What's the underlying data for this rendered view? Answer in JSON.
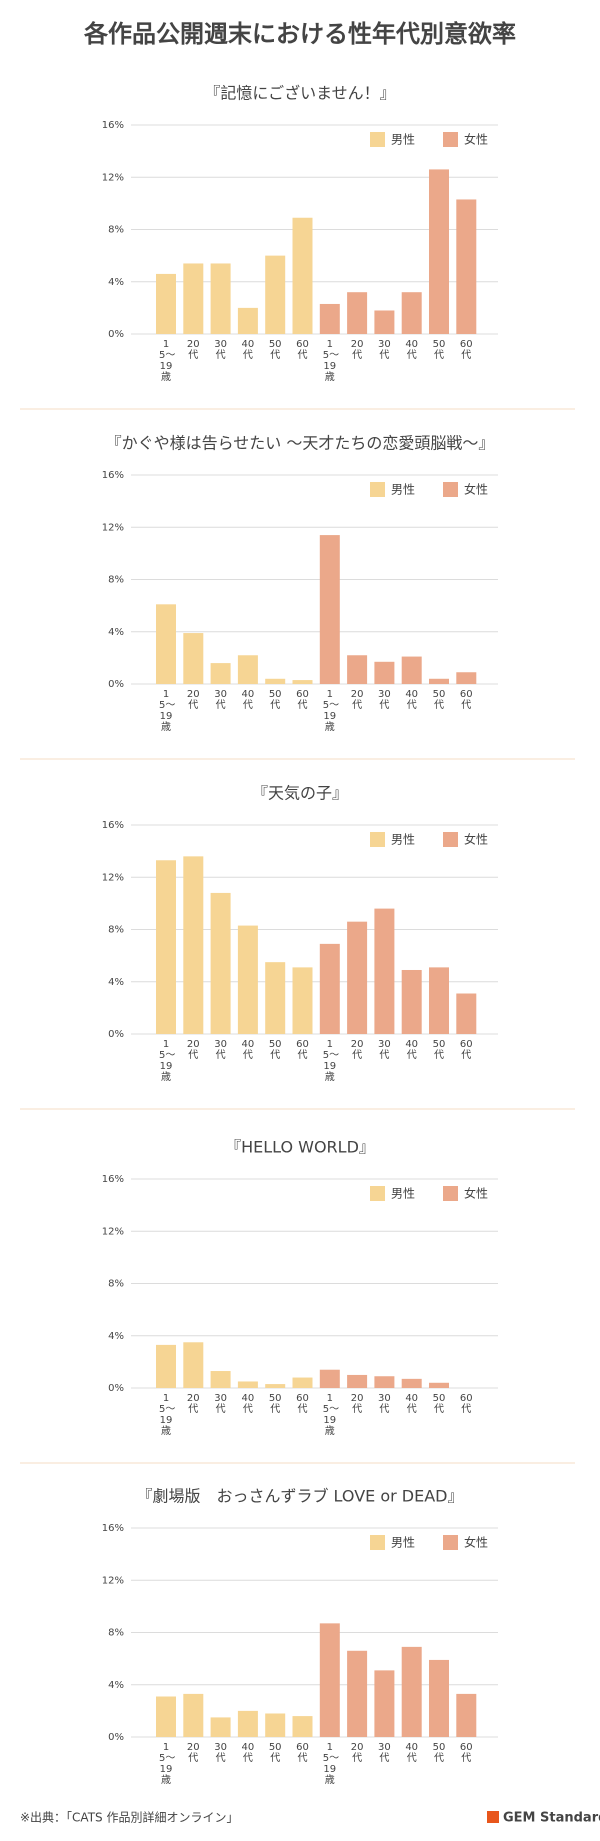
{
  "title": "各作品公開週末における性年代別意欲率",
  "source": "※出典：「CATS 作品別詳細オンライン」",
  "brand": "GEM Standard",
  "chart_data": [
    {
      "type": "bar",
      "title": "『記憶にございません！』",
      "categories": [
        "15〜19歳",
        "20代",
        "30代",
        "40代",
        "50代",
        "60代"
      ],
      "series": [
        {
          "name": "男性",
          "color": "#f6d594",
          "values": [
            4.6,
            5.4,
            5.4,
            2.0,
            6.0,
            8.9
          ]
        },
        {
          "name": "女性",
          "color": "#eba88a",
          "values": [
            2.3,
            3.2,
            1.8,
            3.2,
            12.6,
            10.3
          ]
        }
      ],
      "ylim": [
        0,
        16
      ],
      "yticks": [
        {
          "value": 0,
          "label": "0%"
        },
        {
          "value": 4,
          "label": "4%"
        },
        {
          "value": 8,
          "label": "8%"
        },
        {
          "value": 12,
          "label": "12%"
        },
        {
          "value": 16,
          "label": "16%"
        }
      ],
      "grid": true,
      "legend": "top-right"
    },
    {
      "type": "bar",
      "title": "『かぐや様は告らせたい ～天才たちの恋愛頭脳戦～』",
      "categories": [
        "15〜19歳",
        "20代",
        "30代",
        "40代",
        "50代",
        "60代"
      ],
      "series": [
        {
          "name": "男性",
          "color": "#f6d594",
          "values": [
            6.1,
            3.9,
            1.6,
            2.2,
            0.4,
            0.3
          ]
        },
        {
          "name": "女性",
          "color": "#eba88a",
          "values": [
            11.4,
            2.2,
            1.7,
            2.1,
            0.4,
            0.9
          ]
        }
      ],
      "ylim": [
        0,
        16
      ],
      "yticks": [
        {
          "value": 0,
          "label": "0%"
        },
        {
          "value": 4,
          "label": "4%"
        },
        {
          "value": 8,
          "label": "8%"
        },
        {
          "value": 12,
          "label": "12%"
        },
        {
          "value": 16,
          "label": "16%"
        }
      ],
      "grid": true,
      "legend": "top-right"
    },
    {
      "type": "bar",
      "title": "『天気の子』",
      "categories": [
        "15〜19歳",
        "20代",
        "30代",
        "40代",
        "50代",
        "60代"
      ],
      "series": [
        {
          "name": "男性",
          "color": "#f6d594",
          "values": [
            13.3,
            13.6,
            10.8,
            8.3,
            5.5,
            5.1
          ]
        },
        {
          "name": "女性",
          "color": "#eba88a",
          "values": [
            6.9,
            8.6,
            9.6,
            4.9,
            5.1,
            3.1
          ]
        }
      ],
      "ylim": [
        0,
        16
      ],
      "yticks": [
        {
          "value": 0,
          "label": "0%"
        },
        {
          "value": 4,
          "label": "4%"
        },
        {
          "value": 8,
          "label": "8%"
        },
        {
          "value": 12,
          "label": "12%"
        },
        {
          "value": 16,
          "label": "16%"
        }
      ],
      "grid": true,
      "legend": "top-right"
    },
    {
      "type": "bar",
      "title": "『HELLO WORLD』",
      "categories": [
        "15〜19歳",
        "20代",
        "30代",
        "40代",
        "50代",
        "60代"
      ],
      "series": [
        {
          "name": "男性",
          "color": "#f6d594",
          "values": [
            3.3,
            3.5,
            1.3,
            0.5,
            0.3,
            0.8
          ]
        },
        {
          "name": "女性",
          "color": "#eba88a",
          "values": [
            1.4,
            1.0,
            0.9,
            0.7,
            0.4,
            0
          ]
        }
      ],
      "ylim": [
        0,
        16
      ],
      "yticks": [
        {
          "value": 0,
          "label": "0%"
        },
        {
          "value": 4,
          "label": "4%"
        },
        {
          "value": 8,
          "label": "8%"
        },
        {
          "value": 12,
          "label": "12%"
        },
        {
          "value": 16,
          "label": "16%"
        }
      ],
      "grid": true,
      "legend": "top-right"
    },
    {
      "type": "bar",
      "title": "『劇場版　おっさんずラブ LOVE or DEAD』",
      "categories": [
        "15〜19歳",
        "20代",
        "30代",
        "40代",
        "50代",
        "60代"
      ],
      "series": [
        {
          "name": "男性",
          "color": "#f6d594",
          "values": [
            3.1,
            3.3,
            1.5,
            2.0,
            1.8,
            1.6
          ]
        },
        {
          "name": "女性",
          "color": "#eba88a",
          "values": [
            8.7,
            6.6,
            5.1,
            6.9,
            5.9,
            3.3
          ]
        }
      ],
      "ylim": [
        0,
        16
      ],
      "yticks": [
        {
          "value": 0,
          "label": "0%"
        },
        {
          "value": 4,
          "label": "4%"
        },
        {
          "value": 8,
          "label": "8%"
        },
        {
          "value": 12,
          "label": "12%"
        },
        {
          "value": 16,
          "label": "16%"
        }
      ],
      "grid": true,
      "legend": "top-right"
    }
  ]
}
